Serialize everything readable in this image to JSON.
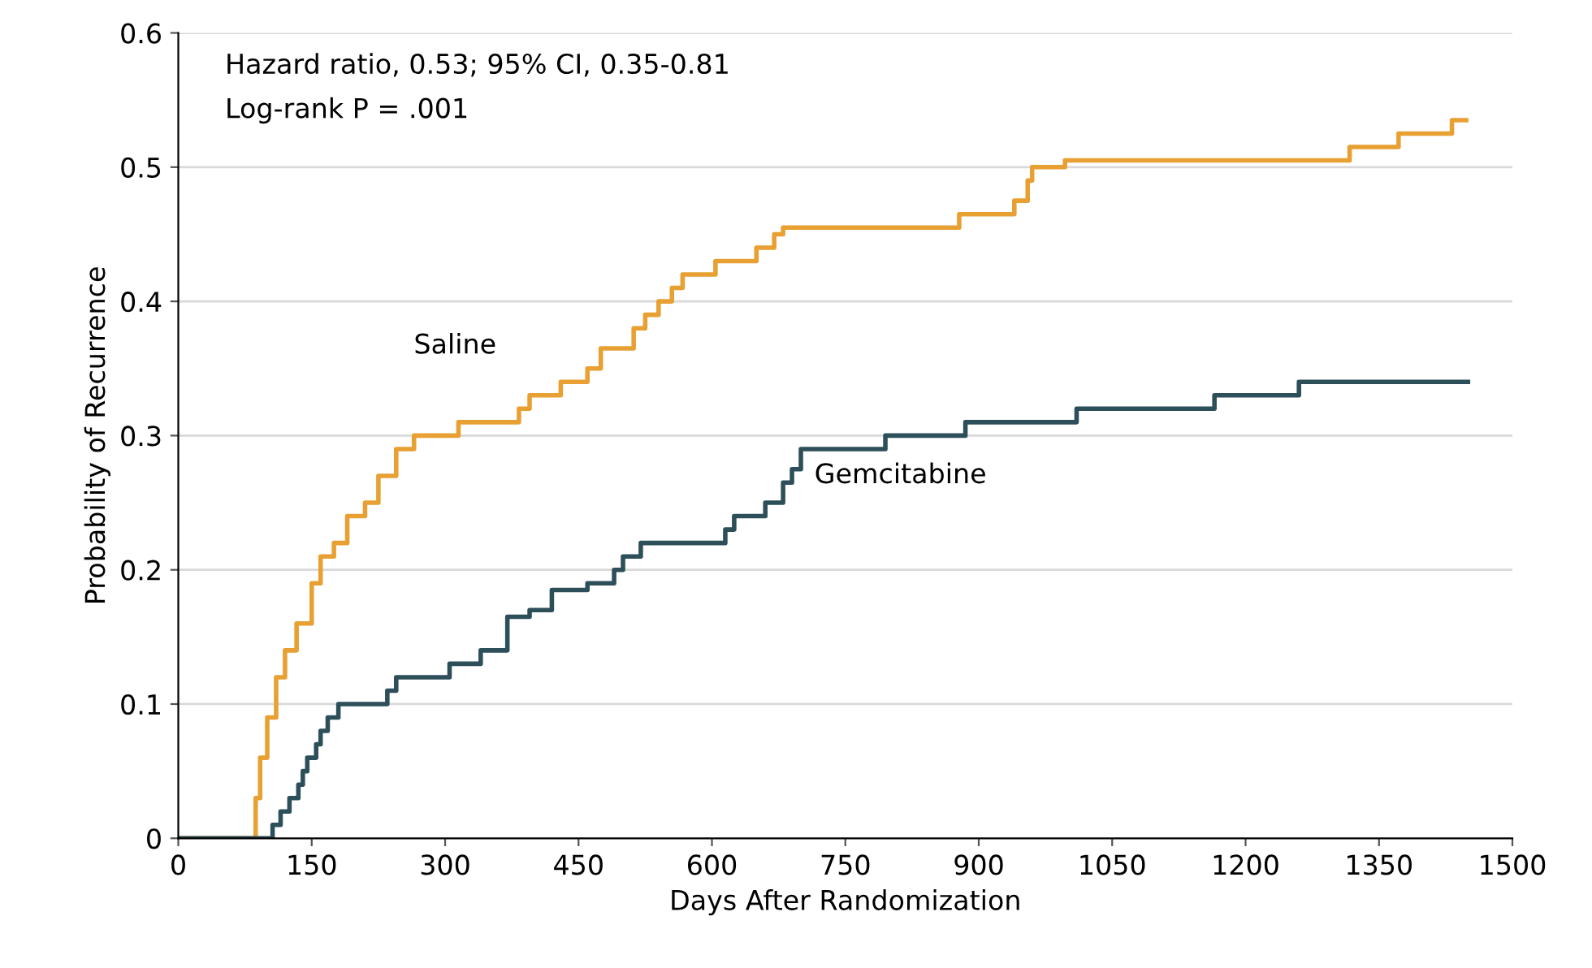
{
  "chart_data": {
    "type": "step",
    "xlabel": "Days After Randomization",
    "ylabel": "Probability of Recurrence",
    "xlim": [
      0,
      1500
    ],
    "xticks": [
      0,
      150,
      300,
      450,
      600,
      750,
      900,
      1050,
      1200,
      1350,
      1500
    ],
    "ylim": [
      0,
      0.6
    ],
    "yticks": [
      0,
      0.1,
      0.2,
      0.3,
      0.4,
      0.5,
      0.6
    ],
    "grid": "y",
    "legend": false,
    "marker": "none",
    "line_style": "solid",
    "series": [
      {
        "name": "Saline",
        "color": "#e8a033",
        "x": [
          0,
          87,
          92,
          100,
          110,
          120,
          133,
          150,
          160,
          175,
          190,
          210,
          225,
          245,
          250,
          265,
          283,
          315,
          383,
          395,
          430,
          460,
          475,
          512,
          525,
          540,
          555,
          567,
          604,
          650,
          670,
          680,
          878,
          940,
          955,
          960,
          997,
          1317,
          1372,
          1432,
          1448
        ],
        "values": [
          0,
          0.03,
          0.06,
          0.09,
          0.12,
          0.14,
          0.16,
          0.19,
          0.21,
          0.22,
          0.24,
          0.25,
          0.27,
          0.29,
          0.29,
          0.3,
          0.3,
          0.31,
          0.32,
          0.33,
          0.34,
          0.35,
          0.365,
          0.38,
          0.39,
          0.4,
          0.41,
          0.42,
          0.43,
          0.44,
          0.45,
          0.455,
          0.465,
          0.475,
          0.49,
          0.5,
          0.505,
          0.515,
          0.525,
          0.535,
          0.535
        ]
      },
      {
        "name": "Gemcitabine",
        "color": "#2d4f5a",
        "x": [
          0,
          106,
          115,
          125,
          135,
          140,
          145,
          155,
          160,
          168,
          180,
          235,
          245,
          305,
          340,
          370,
          395,
          420,
          460,
          490,
          500,
          520,
          615,
          625,
          660,
          680,
          690,
          700,
          795,
          885,
          1010,
          1165,
          1260,
          1450
        ],
        "values": [
          0,
          0.01,
          0.02,
          0.03,
          0.04,
          0.05,
          0.06,
          0.07,
          0.08,
          0.09,
          0.1,
          0.11,
          0.12,
          0.13,
          0.14,
          0.165,
          0.17,
          0.185,
          0.19,
          0.2,
          0.21,
          0.22,
          0.23,
          0.24,
          0.25,
          0.265,
          0.275,
          0.29,
          0.3,
          0.31,
          0.32,
          0.33,
          0.34,
          0.34
        ]
      }
    ],
    "annotations": [
      "Hazard ratio, 0.53; 95% CI, 0.35-0.81",
      "Log-rank P = .001"
    ]
  }
}
